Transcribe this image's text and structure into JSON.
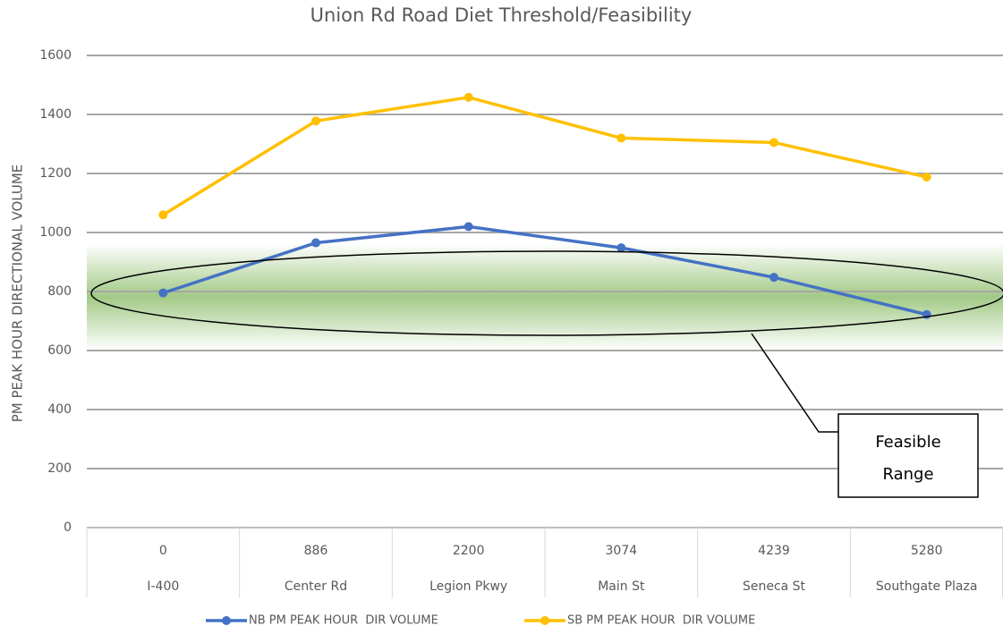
{
  "chart_data": {
    "type": "line",
    "title": "Union Rd Road Diet Threshold/Feasibility",
    "y_label": "PM PEAK HOUR DIRECTIONAL VOLUME",
    "distances": [
      0,
      886,
      2200,
      3074,
      4239,
      5280
    ],
    "categories": [
      "I-400",
      "Center Rd",
      "Legion Pkwy",
      "Main St",
      "Seneca St",
      "Southgate Plaza"
    ],
    "series": [
      {
        "name": "NB PM PEAK HOUR  DIR VOLUME",
        "color": "#4472c4",
        "values": [
          795,
          965,
          1020,
          948,
          848,
          722
        ]
      },
      {
        "name": "SB PM PEAK HOUR  DIR VOLUME",
        "color": "#ffc000",
        "values": [
          1060,
          1378,
          1458,
          1320,
          1305,
          1188
        ]
      }
    ],
    "ylim": [
      0,
      1600
    ],
    "yticks": [
      0,
      200,
      400,
      600,
      800,
      1000,
      1200,
      1400,
      1600
    ],
    "grid": true,
    "legend": "bottom",
    "annotation": [
      "Feasible",
      "Range"
    ]
  }
}
